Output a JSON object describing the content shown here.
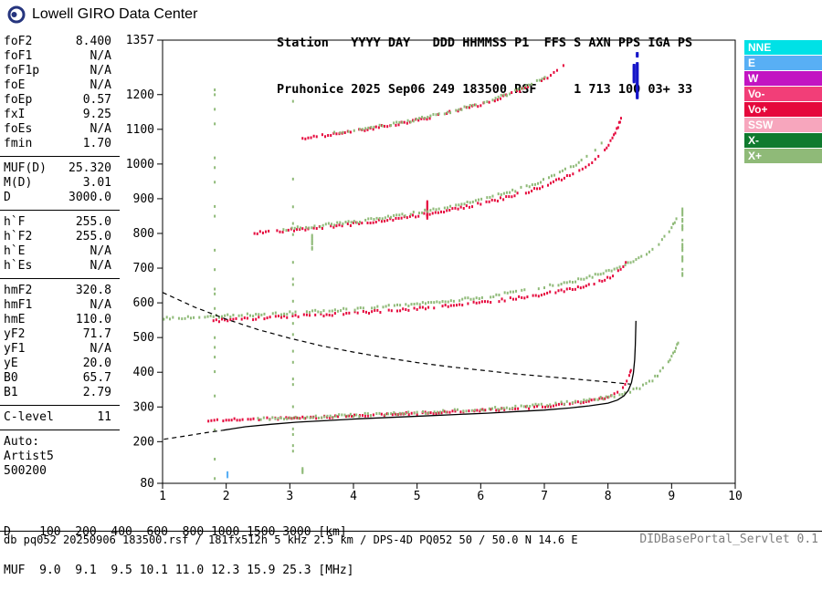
{
  "header": {
    "brand": "Lowell GIRO Data Center",
    "line1": "Station   YYYY DAY   DDD HHMMSS P1  FFS S AXN PPS IGA PS",
    "line2": "Pruhonice 2025 Sep06 249 183500 RSF     1 713 100 03+ 33"
  },
  "legend": {
    "items": [
      {
        "label": "NNE",
        "color": "#00E1E6"
      },
      {
        "label": "E",
        "color": "#58AFF5"
      },
      {
        "label": "W",
        "color": "#C214C2"
      },
      {
        "label": "Vo-",
        "color": "#F23E78"
      },
      {
        "label": "Vo+",
        "color": "#E5083C"
      },
      {
        "label": "SSW",
        "color": "#F7A6BD"
      },
      {
        "label": "X-",
        "color": "#0F7A2E"
      },
      {
        "label": "X+",
        "color": "#8FBA78"
      }
    ]
  },
  "params": {
    "groups": [
      {
        "rows": [
          [
            "foF2",
            "8.400"
          ],
          [
            "foF1",
            "N/A"
          ],
          [
            "foF1p",
            "N/A"
          ],
          [
            "foE",
            "N/A"
          ],
          [
            "foEp",
            "0.57"
          ],
          [
            "fxI",
            "9.25"
          ],
          [
            "foEs",
            "N/A"
          ],
          [
            "fmin",
            "1.70"
          ]
        ]
      },
      {
        "rows": [
          [
            "MUF(D)",
            "25.320"
          ],
          [
            "M(D)",
            "3.01"
          ],
          [
            "D",
            "3000.0"
          ]
        ]
      },
      {
        "rows": [
          [
            "h`F",
            "255.0"
          ],
          [
            "h`F2",
            "255.0"
          ],
          [
            "h`E",
            "N/A"
          ],
          [
            "h`Es",
            "N/A"
          ]
        ]
      },
      {
        "rows": [
          [
            "hmF2",
            "320.8"
          ],
          [
            "hmF1",
            "N/A"
          ],
          [
            "hmE",
            "110.0"
          ],
          [
            "yF2",
            "71.7"
          ],
          [
            "yF1",
            "N/A"
          ],
          [
            "yE",
            "20.0"
          ],
          [
            "B0",
            "65.7"
          ],
          [
            "B1",
            "2.79"
          ]
        ]
      },
      {
        "rows": [
          [
            "C-level",
            "11"
          ]
        ]
      }
    ],
    "auto_lines": [
      "Auto:",
      "Artist5",
      "500200"
    ]
  },
  "dmuf": {
    "line1": "D    100  200  400  600  800 1000 1500 3000 [km]",
    "line2": "MUF  9.0  9.1  9.5 10.1 11.0 12.3 15.9 25.3 [MHz]",
    "D": [
      100,
      200,
      400,
      600,
      800,
      1000,
      1500,
      3000
    ],
    "MUF": [
      9.0,
      9.1,
      9.5,
      10.1,
      11.0,
      12.3,
      15.9,
      25.3
    ]
  },
  "statusbar": {
    "left": "db pq052 20250906 183500.rsf / 181fx512h 5 kHz 2.5 km / DPS-4D PQ052 50 / 50.0 N 14.6 E",
    "right": "DIDBasePortal_Servlet 0.1"
  },
  "chart_data": {
    "type": "scatter",
    "x_unit": "MHz",
    "y_unit": "km",
    "xlim": [
      1,
      10
    ],
    "ylim": [
      80,
      1357
    ],
    "x_ticks": [
      1,
      2,
      3,
      4,
      5,
      6,
      7,
      8,
      9,
      10
    ],
    "y_ticks": [
      80,
      200,
      300,
      400,
      500,
      600,
      700,
      800,
      900,
      1000,
      1100,
      1200,
      1357
    ],
    "series": [
      {
        "name": "O-hop1",
        "color": "#E5083C",
        "points": [
          [
            1.72,
            261
          ],
          [
            2.0,
            262
          ],
          [
            2.3,
            263
          ],
          [
            2.6,
            265
          ],
          [
            2.9,
            267
          ],
          [
            3.2,
            268
          ],
          [
            3.5,
            270
          ],
          [
            3.8,
            272
          ],
          [
            4.1,
            274
          ],
          [
            4.4,
            276
          ],
          [
            4.7,
            279
          ],
          [
            5.0,
            281
          ],
          [
            5.3,
            283
          ],
          [
            5.6,
            286
          ],
          [
            5.9,
            288
          ],
          [
            6.2,
            291
          ],
          [
            6.5,
            295
          ],
          [
            6.8,
            298
          ],
          [
            7.1,
            303
          ],
          [
            7.4,
            308
          ],
          [
            7.7,
            315
          ],
          [
            7.95,
            324
          ],
          [
            8.1,
            335
          ],
          [
            8.2,
            348
          ],
          [
            8.27,
            363
          ],
          [
            8.32,
            381
          ],
          [
            8.35,
            398
          ],
          [
            8.37,
            413
          ]
        ]
      },
      {
        "name": "X-hop1",
        "color": "#8FBA78",
        "points": [
          [
            2.5,
            266
          ],
          [
            3.0,
            269
          ],
          [
            3.5,
            272
          ],
          [
            4.0,
            276
          ],
          [
            4.5,
            280
          ],
          [
            5.0,
            284
          ],
          [
            5.5,
            288
          ],
          [
            6.0,
            293
          ],
          [
            6.5,
            299
          ],
          [
            7.0,
            306
          ],
          [
            7.4,
            313
          ],
          [
            7.8,
            322
          ],
          [
            8.1,
            332
          ],
          [
            8.35,
            345
          ],
          [
            8.55,
            360
          ],
          [
            8.7,
            378
          ],
          [
            8.82,
            400
          ],
          [
            8.95,
            430
          ],
          [
            9.05,
            462
          ],
          [
            9.12,
            495
          ]
        ]
      },
      {
        "name": "O-hop2",
        "color": "#E5083C",
        "points": [
          [
            1.8,
            549
          ],
          [
            2.2,
            552
          ],
          [
            2.6,
            556
          ],
          [
            3.0,
            560
          ],
          [
            3.4,
            564
          ],
          [
            3.8,
            568
          ],
          [
            4.2,
            573
          ],
          [
            4.6,
            578
          ],
          [
            5.0,
            584
          ],
          [
            5.4,
            590
          ],
          [
            5.8,
            597
          ],
          [
            6.2,
            605
          ],
          [
            6.6,
            614
          ],
          [
            7.0,
            625
          ],
          [
            7.4,
            638
          ],
          [
            7.7,
            651
          ],
          [
            7.95,
            666
          ],
          [
            8.12,
            684
          ],
          [
            8.24,
            705
          ],
          [
            8.32,
            725
          ]
        ]
      },
      {
        "name": "X-hop2",
        "color": "#8FBA78",
        "points": [
          [
            1.02,
            556
          ],
          [
            1.4,
            558
          ],
          [
            1.8,
            561
          ],
          [
            2.2,
            564
          ],
          [
            2.6,
            567
          ],
          [
            3.0,
            571
          ],
          [
            3.4,
            575
          ],
          [
            3.8,
            580
          ],
          [
            4.2,
            585
          ],
          [
            4.6,
            591
          ],
          [
            5.0,
            597
          ],
          [
            5.4,
            604
          ],
          [
            5.8,
            612
          ],
          [
            6.2,
            621
          ],
          [
            6.6,
            632
          ],
          [
            7.0,
            645
          ],
          [
            7.4,
            660
          ],
          [
            7.8,
            679
          ],
          [
            8.1,
            697
          ],
          [
            8.4,
            720
          ],
          [
            8.65,
            748
          ],
          [
            8.85,
            780
          ],
          [
            9.0,
            815
          ],
          [
            9.1,
            852
          ]
        ]
      },
      {
        "name": "O-hop3",
        "color": "#E5083C",
        "points": [
          [
            2.4,
            800
          ],
          [
            2.8,
            806
          ],
          [
            3.2,
            812
          ],
          [
            3.6,
            819
          ],
          [
            4.0,
            827
          ],
          [
            4.4,
            836
          ],
          [
            4.8,
            846
          ],
          [
            5.2,
            857
          ],
          [
            5.6,
            870
          ],
          [
            6.0,
            885
          ],
          [
            6.4,
            903
          ],
          [
            6.8,
            924
          ],
          [
            7.1,
            944
          ],
          [
            7.4,
            968
          ],
          [
            7.6,
            988
          ],
          [
            7.8,
            1012
          ],
          [
            7.95,
            1040
          ],
          [
            8.07,
            1072
          ],
          [
            8.16,
            1108
          ],
          [
            8.22,
            1140
          ]
        ]
      },
      {
        "name": "X-hop3",
        "color": "#8FBA78",
        "points": [
          [
            2.9,
            812
          ],
          [
            3.3,
            819
          ],
          [
            3.7,
            827
          ],
          [
            4.1,
            836
          ],
          [
            4.5,
            846
          ],
          [
            4.9,
            857
          ],
          [
            5.3,
            870
          ],
          [
            5.7,
            885
          ],
          [
            6.1,
            902
          ],
          [
            6.5,
            922
          ],
          [
            6.9,
            946
          ],
          [
            7.2,
            970
          ],
          [
            7.5,
            1000
          ],
          [
            7.75,
            1032
          ],
          [
            7.95,
            1065
          ]
        ]
      },
      {
        "name": "O-hop4",
        "color": "#E5083C",
        "points": [
          [
            3.2,
            1075
          ],
          [
            3.6,
            1084
          ],
          [
            4.0,
            1094
          ],
          [
            4.4,
            1106
          ],
          [
            4.8,
            1119
          ],
          [
            5.2,
            1134
          ],
          [
            5.6,
            1152
          ],
          [
            6.0,
            1172
          ],
          [
            6.4,
            1196
          ],
          [
            6.7,
            1218
          ],
          [
            7.0,
            1244
          ],
          [
            7.2,
            1266
          ],
          [
            7.35,
            1288
          ]
        ]
      },
      {
        "name": "X-hop4",
        "color": "#8FBA78",
        "points": [
          [
            3.7,
            1088
          ],
          [
            4.1,
            1099
          ],
          [
            4.5,
            1111
          ],
          [
            4.9,
            1125
          ],
          [
            5.3,
            1141
          ],
          [
            5.7,
            1159
          ],
          [
            6.1,
            1181
          ],
          [
            6.5,
            1206
          ],
          [
            6.8,
            1230
          ],
          [
            7.05,
            1254
          ]
        ]
      }
    ],
    "noise": [
      {
        "name": "noise-column-1.8mhz",
        "f": 1.82,
        "h_range": [
          95,
          1255
        ],
        "step": 14,
        "keep": 0.3,
        "w": 2,
        "color": "#8FBA78"
      },
      {
        "name": "noise-column-3mhz",
        "f": 3.05,
        "h_range": [
          110,
          1245
        ],
        "step": 16,
        "keep": 0.28,
        "w": 2,
        "color": "#8FBA78"
      },
      {
        "name": "es-mark-blue",
        "f": 2.02,
        "h_range": [
          100,
          114
        ],
        "step": 4,
        "keep": 1,
        "w": 2,
        "color": "#58AFF5"
      },
      {
        "name": "es-mark-green",
        "f": 3.2,
        "h_range": [
          112,
          126
        ],
        "step": 4,
        "keep": 1,
        "w": 2,
        "color": "#8FBA78"
      },
      {
        "name": "spread-red-5.2mhz",
        "f": 5.16,
        "h_range": [
          845,
          893
        ],
        "step": 4,
        "keep": 1,
        "w": 2,
        "color": "#E5083C"
      },
      {
        "name": "spread-green-3.35mhz",
        "f": 3.35,
        "h_range": [
          756,
          800
        ],
        "step": 5,
        "keep": 0.9,
        "w": 2,
        "color": "#8FBA78"
      },
      {
        "name": "x-cusp-column-9.2mhz",
        "f": 9.17,
        "h_range": [
          680,
          876
        ],
        "step": 6,
        "keep": 0.6,
        "w": 2,
        "color": "#8FBA78"
      },
      {
        "name": "rfi-bar-left",
        "f": 8.41,
        "h_range": [
          1238,
          1286
        ],
        "step": 3,
        "keep": 1,
        "w": 3,
        "color": "#1414C8"
      },
      {
        "name": "rfi-bar-right",
        "f": 8.46,
        "h_range": [
          1192,
          1292
        ],
        "step": 3,
        "keep": 1,
        "w": 3,
        "color": "#1414C8"
      },
      {
        "name": "rfi-dot-top",
        "f": 8.46,
        "h_range": [
          1312,
          1320
        ],
        "step": 4,
        "keep": 1,
        "w": 3,
        "color": "#1414C8"
      }
    ],
    "lines": [
      {
        "name": "transmission-curve-dashed",
        "style": "dashed",
        "color": "#000000",
        "width": 1.2,
        "points": [
          [
            1.0,
            630
          ],
          [
            1.5,
            588
          ],
          [
            2.0,
            553
          ],
          [
            2.5,
            523
          ],
          [
            3.0,
            498
          ],
          [
            3.5,
            476
          ],
          [
            4.0,
            458
          ],
          [
            4.5,
            442
          ],
          [
            5.0,
            428
          ],
          [
            5.5,
            416
          ],
          [
            6.0,
            406
          ],
          [
            6.5,
            396
          ],
          [
            7.0,
            388
          ],
          [
            7.5,
            380
          ],
          [
            8.0,
            372
          ],
          [
            8.35,
            366
          ]
        ]
      },
      {
        "name": "profile-extension-dashed",
        "style": "dashed",
        "color": "#000000",
        "width": 1.2,
        "points": [
          [
            1.02,
            207
          ],
          [
            1.35,
            216
          ],
          [
            1.65,
            225
          ],
          [
            1.95,
            233
          ]
        ]
      },
      {
        "name": "artist-profile-line",
        "style": "solid",
        "color": "#000000",
        "width": 1.3,
        "points": [
          [
            1.95,
            233
          ],
          [
            2.3,
            243
          ],
          [
            2.7,
            250
          ],
          [
            3.1,
            256
          ],
          [
            3.6,
            261
          ],
          [
            4.1,
            266
          ],
          [
            4.6,
            270
          ],
          [
            5.1,
            274
          ],
          [
            5.6,
            278
          ],
          [
            6.1,
            282
          ],
          [
            6.6,
            287
          ],
          [
            7.0,
            291
          ],
          [
            7.4,
            297
          ],
          [
            7.7,
            303
          ],
          [
            8.0,
            311
          ],
          [
            8.15,
            320
          ],
          [
            8.25,
            332
          ],
          [
            8.32,
            348
          ],
          [
            8.37,
            370
          ],
          [
            8.4,
            398
          ],
          [
            8.42,
            436
          ],
          [
            8.43,
            478
          ],
          [
            8.44,
            548
          ]
        ]
      }
    ]
  }
}
